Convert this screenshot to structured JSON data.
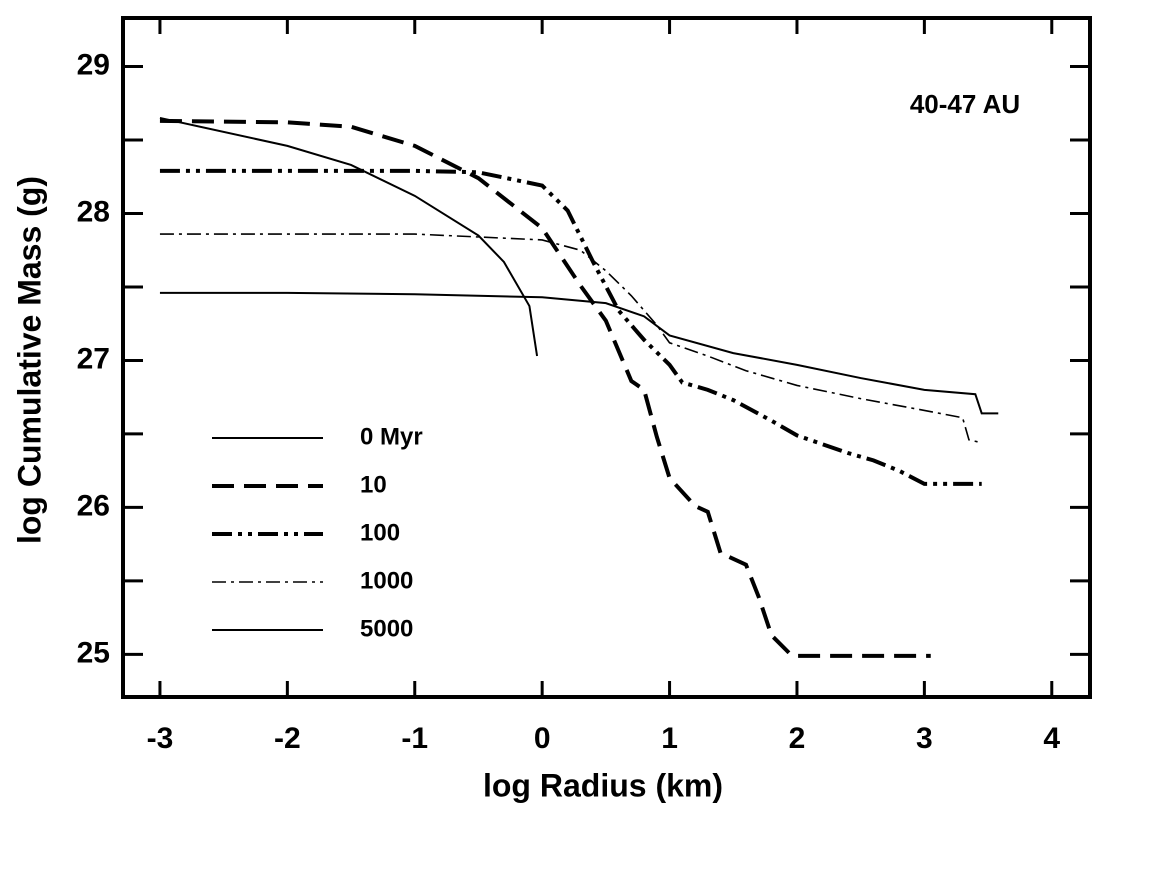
{
  "chart_data": {
    "type": "line",
    "annotation": "40-47 AU",
    "xlabel": "log Radius (km)",
    "ylabel": "log Cumulative Mass (g)",
    "xlim": [
      -3.29,
      4.3
    ],
    "ylim": [
      24.71,
      29.33
    ],
    "xticks": [
      -3,
      -2,
      -1,
      0,
      1,
      2,
      3,
      4
    ],
    "yticks": [
      25,
      26,
      27,
      28,
      29
    ],
    "yminorticks": [
      25.5,
      26.5,
      27.5,
      28.5
    ],
    "legend": "middle-left",
    "series": [
      {
        "name": "0 Myr",
        "color": "#000000",
        "style": "solid",
        "x": [
          -3,
          -2,
          -1,
          0,
          0.5,
          0.8,
          1,
          1.5,
          2,
          2.5,
          3,
          3.4,
          3.45,
          3.58
        ],
        "values": [
          27.46,
          27.46,
          27.45,
          27.43,
          27.39,
          27.3,
          27.17,
          27.05,
          26.97,
          26.88,
          26.8,
          26.77,
          26.64,
          26.64
        ]
      },
      {
        "name": "10",
        "color": "#000000",
        "style": "dashed",
        "x": [
          -3,
          -2,
          -1.5,
          -1,
          -0.5,
          0,
          0.3,
          0.5,
          0.7,
          0.8,
          0.9,
          1.0,
          1.2,
          1.3,
          1.4,
          1.6,
          1.7,
          1.8,
          1.95,
          2,
          3.05
        ],
        "values": [
          28.63,
          28.62,
          28.59,
          28.46,
          28.24,
          27.9,
          27.51,
          27.27,
          26.86,
          26.8,
          26.48,
          26.2,
          26.01,
          25.97,
          25.69,
          25.61,
          25.39,
          25.13,
          25.0,
          24.99,
          24.99
        ]
      },
      {
        "name": "100",
        "color": "#000000",
        "style": "dash-dot-dot",
        "x": [
          -3,
          -1,
          -0.5,
          0,
          0.2,
          0.4,
          0.6,
          0.8,
          1.0,
          1.1,
          1.3,
          1.5,
          1.8,
          2.0,
          2.2,
          2.4,
          2.6,
          2.8,
          3.0,
          3.45
        ],
        "values": [
          28.29,
          28.29,
          28.28,
          28.19,
          28.02,
          27.67,
          27.34,
          27.14,
          26.97,
          26.85,
          26.8,
          26.73,
          26.59,
          26.49,
          26.43,
          26.37,
          26.32,
          26.25,
          26.16,
          26.16
        ]
      },
      {
        "name": "1000",
        "color": "#000000",
        "style": "dash-dot",
        "x": [
          -3,
          -1,
          0,
          0.3,
          0.5,
          0.7,
          0.9,
          1.0,
          1.3,
          1.6,
          2.0,
          2.5,
          3.0,
          3.3,
          3.35,
          3.45
        ],
        "values": [
          27.86,
          27.86,
          27.82,
          27.75,
          27.61,
          27.44,
          27.24,
          27.12,
          27.03,
          26.93,
          26.83,
          26.74,
          26.66,
          26.61,
          26.46,
          26.44
        ]
      },
      {
        "name": "5000",
        "color": "#000000",
        "style": "solid",
        "x": [
          -3,
          -2,
          -1.5,
          -1,
          -0.5,
          -0.3,
          -0.1,
          -0.04
        ],
        "values": [
          28.65,
          28.46,
          28.33,
          28.12,
          27.85,
          27.67,
          27.37,
          27.03
        ]
      }
    ]
  }
}
